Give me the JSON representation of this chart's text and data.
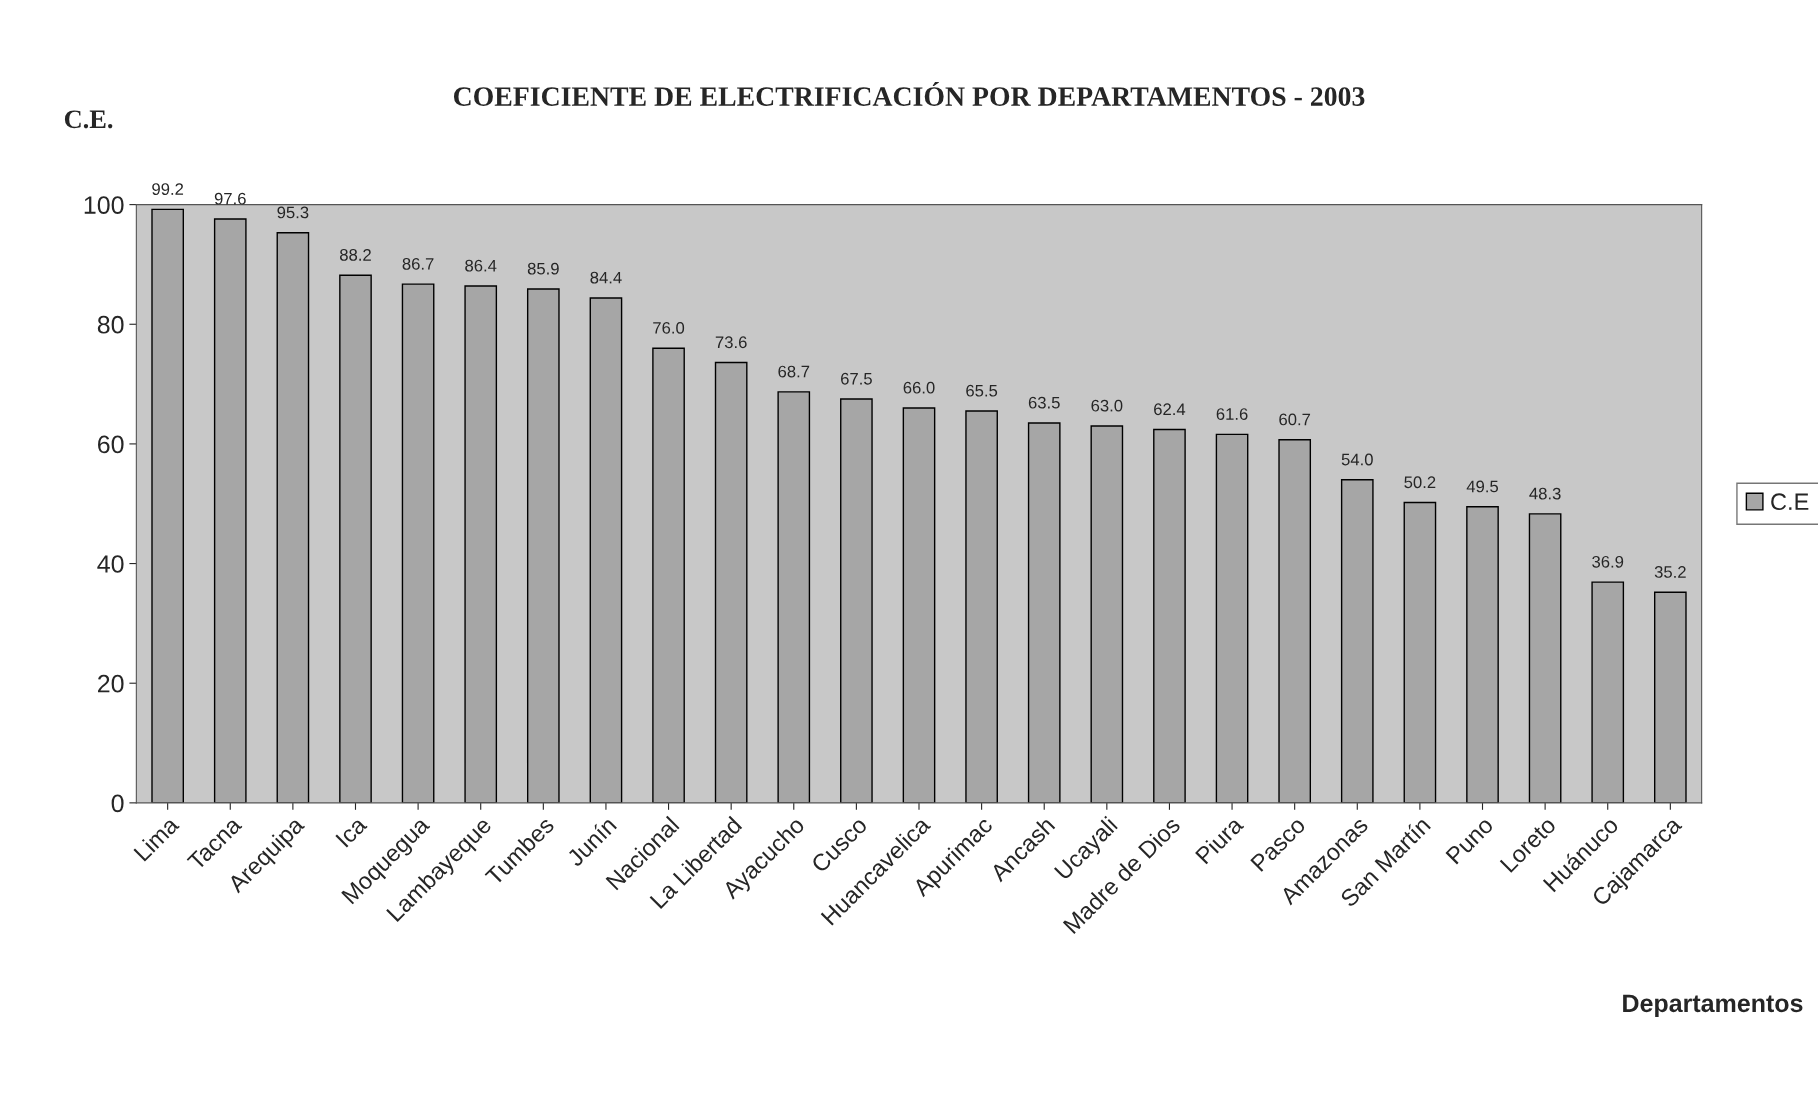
{
  "chart_data": {
    "type": "bar",
    "title": "COEFICIENTE DE ELECTRIFICACIÓN POR DEPARTAMENTOS - 2003",
    "ylabel": "C.E.",
    "xlabel": "Departamentos",
    "categories": [
      "Lima",
      "Tacna",
      "Arequipa",
      "Ica",
      "Moquegua",
      "Lambayeque",
      "Tumbes",
      "Junín",
      "Nacional",
      "La Libertad",
      "Ayacucho",
      "Cusco",
      "Huancavelica",
      "Apurimac",
      "Ancash",
      "Ucayali",
      "Madre de Dios",
      "Piura",
      "Pasco",
      "Amazonas",
      "San Martín",
      "Puno",
      "Loreto",
      "Huánuco",
      "Cajamarca"
    ],
    "series": [
      {
        "name": "C.E",
        "color": "#a6a6a6",
        "values": [
          99.2,
          97.6,
          95.3,
          88.2,
          86.7,
          86.4,
          85.9,
          84.4,
          76.0,
          73.6,
          68.7,
          67.5,
          66.0,
          65.5,
          63.5,
          63.0,
          62.4,
          61.6,
          60.7,
          54.0,
          50.2,
          49.5,
          48.3,
          36.9,
          35.2
        ],
        "value_labels": [
          "99.2",
          "97.6",
          "95.3",
          "88.2",
          "86.7",
          "86.4",
          "85.9",
          "84.4",
          "76.0",
          "73.6",
          "68.7",
          "67.5",
          "66.0",
          "65.5",
          "63.5",
          "63.0",
          "62.4",
          "61.6",
          "60.7",
          "54.0",
          "50.2",
          "49.5",
          "48.3",
          "36.9",
          "35.2"
        ]
      }
    ],
    "ylim": [
      0,
      100
    ],
    "yticks": [
      0,
      20,
      40,
      60,
      80,
      100
    ],
    "legend": "right"
  }
}
